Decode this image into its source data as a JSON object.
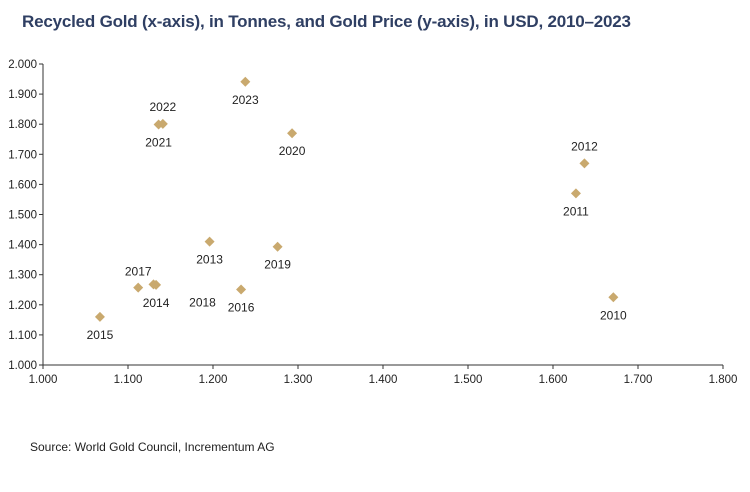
{
  "chart_data": {
    "type": "scatter",
    "title": "Recycled Gold (x-axis), in Tonnes, and Gold Price (y-axis), in USD, 2010–2023",
    "xlabel": "",
    "ylabel": "",
    "xlim": [
      1000,
      1800
    ],
    "ylim": [
      1000,
      2000
    ],
    "xticks": [
      "1.000",
      "1.100",
      "1.200",
      "1.300",
      "1.400",
      "1.500",
      "1.600",
      "1.700",
      "1.800"
    ],
    "yticks": [
      "2.000",
      "1.900",
      "1.800",
      "1.700",
      "1.600",
      "1.500",
      "1.400",
      "1.300",
      "1.200",
      "1.100",
      "1.000"
    ],
    "marker_color": "#c9a96e",
    "points": [
      {
        "label": "2010",
        "x": 1671,
        "y": 1225,
        "label_pos": "below"
      },
      {
        "label": "2011",
        "x": 1627,
        "y": 1570,
        "label_pos": "below"
      },
      {
        "label": "2012",
        "x": 1637,
        "y": 1670,
        "label_pos": "above"
      },
      {
        "label": "2013",
        "x": 1196,
        "y": 1410,
        "label_pos": "below"
      },
      {
        "label": "2014",
        "x": 1133,
        "y": 1266,
        "label_pos": "below"
      },
      {
        "label": "2015",
        "x": 1067,
        "y": 1160,
        "label_pos": "below"
      },
      {
        "label": "2016",
        "x": 1233,
        "y": 1251,
        "label_pos": "below"
      },
      {
        "label": "2017",
        "x": 1112,
        "y": 1257,
        "label_pos": "above-left"
      },
      {
        "label": "2018",
        "x": 1130,
        "y": 1268,
        "label_pos": "below-right"
      },
      {
        "label": "2019",
        "x": 1276,
        "y": 1393,
        "label_pos": "below"
      },
      {
        "label": "2020",
        "x": 1293,
        "y": 1770,
        "label_pos": "below"
      },
      {
        "label": "2021",
        "x": 1136,
        "y": 1799,
        "label_pos": "below"
      },
      {
        "label": "2022",
        "x": 1141,
        "y": 1801,
        "label_pos": "above"
      },
      {
        "label": "2023",
        "x": 1238,
        "y": 1941,
        "label_pos": "below"
      }
    ]
  },
  "source": "Source: World Gold Council, Incrementum AG"
}
